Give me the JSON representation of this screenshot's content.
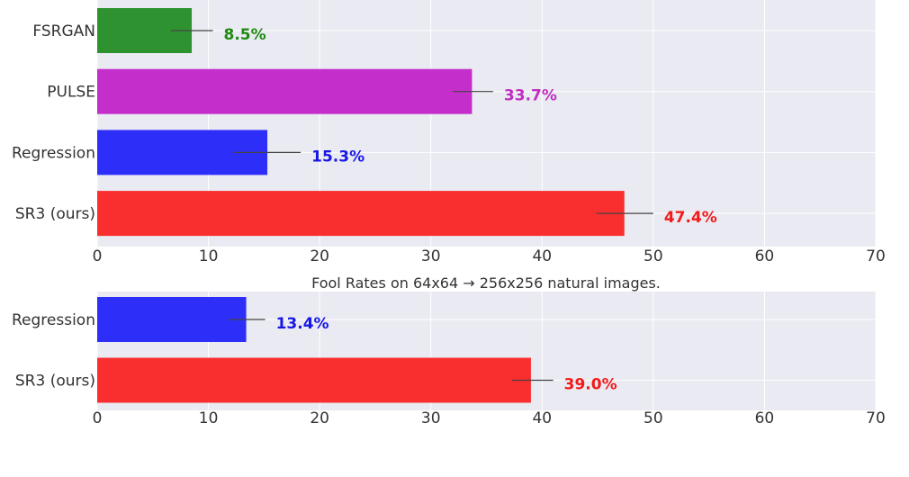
{
  "chart_data": [
    {
      "type": "bar",
      "orientation": "horizontal",
      "title": "",
      "xlabel": "",
      "ylabel": "",
      "xlim": [
        0,
        70
      ],
      "xticks": [
        "0",
        "10",
        "20",
        "30",
        "40",
        "50",
        "60",
        "70"
      ],
      "grid": true,
      "categories": [
        "FSRGAN",
        "PULSE",
        "Regression",
        "SR3 (ours)"
      ],
      "values": [
        8.5,
        33.7,
        15.3,
        47.4
      ],
      "value_labels": [
        "8.5%",
        "33.7%",
        "15.3%",
        "47.4%"
      ],
      "error_low": [
        6.6,
        32.0,
        12.3,
        44.9
      ],
      "error_high": [
        10.4,
        35.6,
        18.3,
        50.0
      ],
      "colors": [
        "#2e9230",
        "#c42ecb",
        "#2e2ef9",
        "#f92e2e"
      ],
      "label_colors": [
        "#1e8a12",
        "#c02ec0",
        "#1717e5",
        "#f21a1a"
      ]
    },
    {
      "type": "bar",
      "orientation": "horizontal",
      "title": "Fool Rates on 64x64 → 256x256 natural images.",
      "xlabel": "",
      "ylabel": "",
      "xlim": [
        0,
        70
      ],
      "xticks": [
        "0",
        "10",
        "20",
        "30",
        "40",
        "50",
        "60",
        "70"
      ],
      "grid": true,
      "categories": [
        "Regression",
        "SR3 (ours)"
      ],
      "values": [
        13.4,
        39.0
      ],
      "value_labels": [
        "13.4%",
        "39.0%"
      ],
      "error_low": [
        11.8,
        37.3
      ],
      "error_high": [
        15.1,
        41.0
      ],
      "colors": [
        "#2e2ef9",
        "#f92e2e"
      ],
      "label_colors": [
        "#1717e5",
        "#f21a1a"
      ]
    }
  ]
}
